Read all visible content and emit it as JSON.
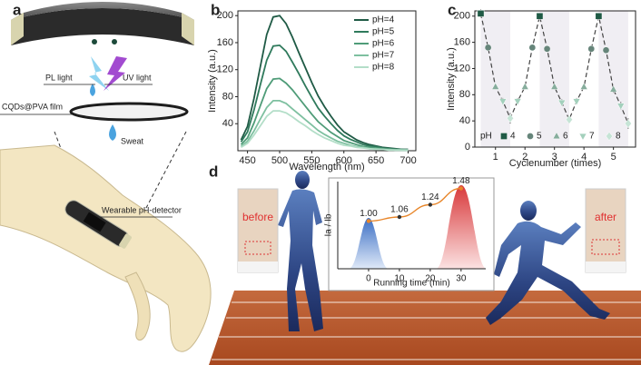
{
  "panel_labels": [
    "a",
    "b",
    "c",
    "d"
  ],
  "figure_a": {
    "pl_light": "PL light",
    "uv_light": "UV light",
    "film": "CQDs@PVA film",
    "sweat": "Sweat",
    "detector": "Wearable pH-detector"
  },
  "figure_d": {
    "before": "before",
    "after": "after"
  },
  "chart_data": [
    {
      "type": "line",
      "x_label": "Wavelength (nm)",
      "y_label": "Intensity (a.u.)",
      "x": [
        440,
        450,
        460,
        470,
        480,
        490,
        500,
        510,
        520,
        530,
        540,
        550,
        560,
        570,
        580,
        590,
        600,
        610,
        620,
        630,
        640,
        650,
        660,
        670,
        680,
        690,
        700
      ],
      "series": [
        {
          "name": "pH=4",
          "color": "#1f5a45",
          "values": [
            16,
            36,
            77,
            125,
            172,
            198,
            200,
            188,
            168,
            145,
            123,
            101,
            81,
            65,
            51,
            38,
            28,
            22,
            16,
            12,
            9,
            7,
            5,
            4,
            3,
            2,
            2
          ]
        },
        {
          "name": "pH=5",
          "color": "#2f7a5c",
          "values": [
            13,
            28,
            60,
            98,
            134,
            155,
            156,
            147,
            131,
            114,
            96,
            79,
            63,
            51,
            40,
            30,
            22,
            17,
            13,
            9,
            7,
            6,
            4,
            3,
            2,
            2,
            1
          ]
        },
        {
          "name": "pH=6",
          "color": "#4f9c78",
          "values": [
            9,
            19,
            41,
            67,
            92,
            106,
            107,
            100,
            90,
            78,
            66,
            54,
            43,
            35,
            27,
            21,
            15,
            12,
            9,
            6,
            5,
            4,
            3,
            2,
            2,
            1,
            1
          ]
        },
        {
          "name": "pH=7",
          "color": "#7ec0a0",
          "values": [
            6,
            14,
            29,
            47,
            64,
            74,
            74,
            70,
            62,
            54,
            46,
            38,
            30,
            24,
            19,
            14,
            11,
            8,
            6,
            5,
            3,
            3,
            2,
            2,
            1,
            1,
            1
          ]
        },
        {
          "name": "pH=8",
          "color": "#b3dec8",
          "values": [
            5,
            11,
            23,
            37,
            51,
            59,
            59,
            56,
            50,
            43,
            37,
            30,
            24,
            19,
            15,
            11,
            8,
            7,
            5,
            4,
            3,
            2,
            2,
            1,
            1,
            1,
            1
          ]
        }
      ],
      "xlim": [
        435,
        712
      ],
      "ylim": [
        0,
        207
      ],
      "xticks": [
        450,
        500,
        550,
        600,
        650,
        700
      ],
      "yticks": [
        40,
        80,
        120,
        160,
        200
      ],
      "legend": "upper right"
    },
    {
      "type": "scatter",
      "x_label": "Cyclenumber (times)",
      "y_label": "Intensity (a.u.)",
      "legend_title": "pH",
      "series": [
        {
          "name": "4",
          "color": "#1f5a45",
          "marker": "square",
          "x": [
            0.5,
            2.5,
            4.5
          ],
          "values": [
            204,
            200,
            200
          ],
          "errors": [
            6,
            5,
            5
          ]
        },
        {
          "name": "5",
          "color": "#66857a",
          "marker": "circle",
          "x": [
            0.75,
            2.25,
            2.75,
            4.25,
            4.75
          ],
          "values": [
            152,
            152,
            150,
            150,
            148
          ],
          "errors": [
            4,
            4,
            4,
            4,
            4
          ]
        },
        {
          "name": "6",
          "color": "#86ad9c",
          "marker": "triangle-up",
          "x": [
            1,
            2,
            3,
            4,
            5
          ],
          "values": [
            92,
            92,
            92,
            92,
            88
          ],
          "errors": [
            4,
            4,
            4,
            4,
            5
          ]
        },
        {
          "name": "7",
          "color": "#a3d0bc",
          "marker": "triangle-down",
          "x": [
            1.25,
            1.75,
            3.25,
            3.75,
            5.25
          ],
          "values": [
            70,
            70,
            68,
            70,
            63
          ],
          "errors": [
            5,
            5,
            5,
            5,
            6
          ]
        },
        {
          "name": "8",
          "color": "#c6e4d6",
          "marker": "diamond",
          "x": [
            1.5,
            3.5,
            5.5
          ],
          "values": [
            44,
            42,
            36
          ],
          "errors": [
            8,
            6,
            8
          ]
        }
      ],
      "xlim": [
        0.3,
        5.75
      ],
      "ylim": [
        0,
        208
      ],
      "xticks": [
        1,
        2,
        3,
        4,
        5
      ],
      "yticks": [
        0,
        40,
        80,
        120,
        160,
        200
      ],
      "line_style": "dashed"
    },
    {
      "type": "line",
      "x_label": "Running time (min)",
      "y_label": "Ia / Ib",
      "x": [
        0,
        10,
        20,
        30
      ],
      "values": [
        1,
        1.06,
        1.24,
        1.48
      ],
      "value_labels": [
        "1.00",
        "1.06",
        "1.24",
        "1.48"
      ],
      "color": "#e8862a",
      "xlim": [
        -10,
        38
      ],
      "ylim": [
        0.3,
        1.58
      ],
      "xticks": [
        0,
        10,
        20,
        30
      ]
    }
  ]
}
